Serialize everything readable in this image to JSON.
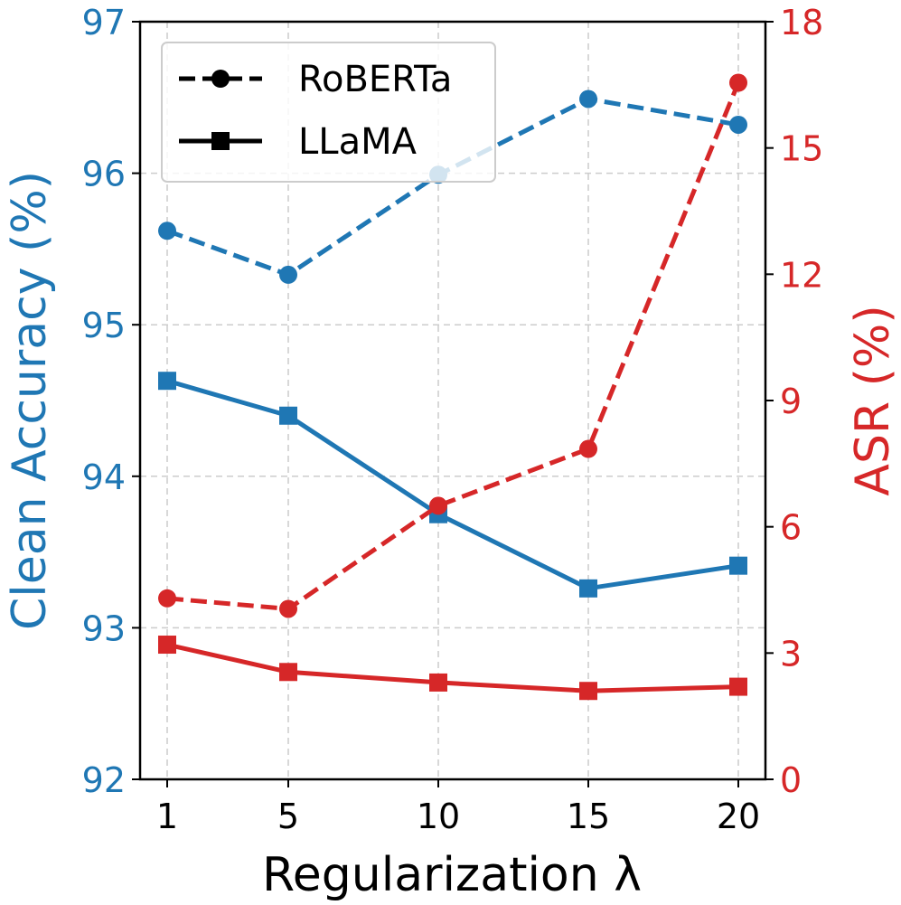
{
  "chart_data": {
    "type": "line",
    "x": [
      1,
      5,
      10,
      15,
      20
    ],
    "x_ticks": [
      "1",
      "5",
      "10",
      "15",
      "20"
    ],
    "xlabel": "Regularization λ",
    "left_axis": {
      "label": "Clean Accuracy (%)",
      "color": "#1f77b4",
      "ylim": [
        92,
        97
      ],
      "ticks": [
        "92",
        "93",
        "94",
        "95",
        "96",
        "97"
      ]
    },
    "right_axis": {
      "label": "ASR (%)",
      "color": "#d62728",
      "ylim": [
        0,
        18
      ],
      "ticks": [
        "0",
        "3",
        "6",
        "9",
        "12",
        "15",
        "18"
      ]
    },
    "grid": true,
    "legend_position": "top-left",
    "legend": [
      {
        "label": "RoBERTa",
        "linestyle": "dashed",
        "marker": "circle"
      },
      {
        "label": "LLaMA",
        "linestyle": "solid",
        "marker": "square"
      }
    ],
    "series": [
      {
        "model": "RoBERTa",
        "axis": "left",
        "metric": "Clean Accuracy (%)",
        "values": [
          95.62,
          95.33,
          95.99,
          96.49,
          96.32
        ]
      },
      {
        "model": "LLaMA",
        "axis": "left",
        "metric": "Clean Accuracy (%)",
        "values": [
          94.63,
          94.4,
          93.75,
          93.26,
          93.41
        ]
      },
      {
        "model": "RoBERTa",
        "axis": "right",
        "metric": "ASR (%)",
        "values": [
          4.3,
          4.05,
          6.5,
          7.85,
          16.55
        ]
      },
      {
        "model": "LLaMA",
        "axis": "right",
        "metric": "ASR (%)",
        "values": [
          3.2,
          2.55,
          2.3,
          2.1,
          2.2
        ]
      }
    ]
  }
}
